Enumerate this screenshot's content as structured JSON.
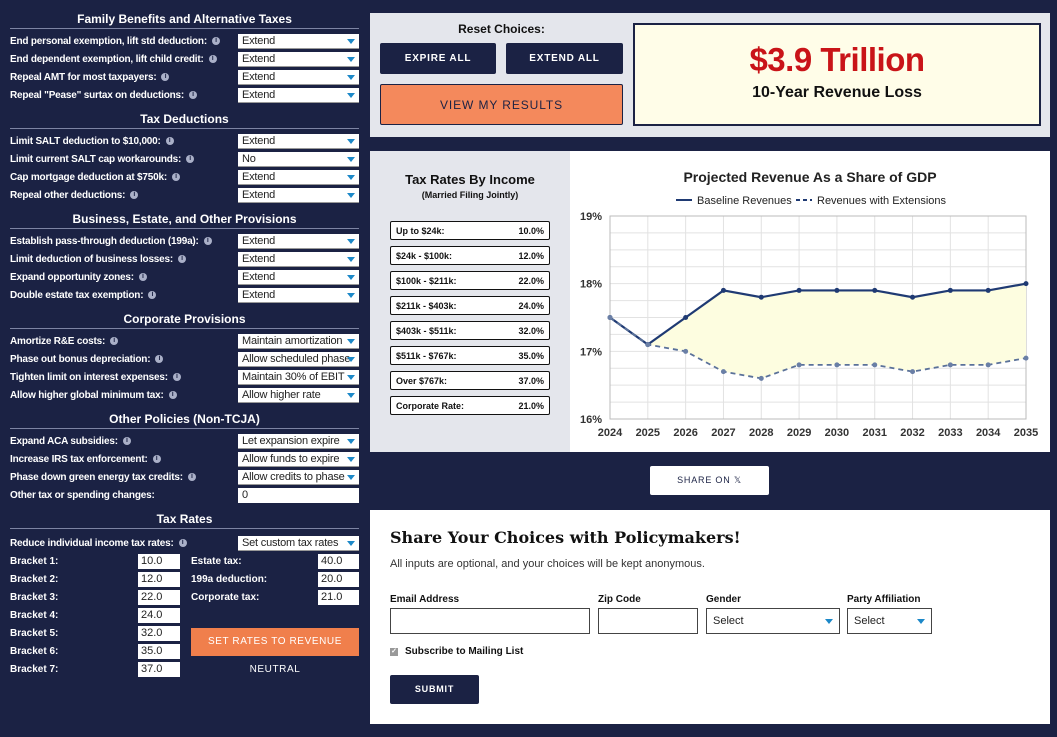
{
  "left": {
    "sections": [
      {
        "title": "Family Benefits and Alternative Taxes",
        "rows": [
          {
            "label": "End personal exemption, lift std deduction:",
            "value": "Extend"
          },
          {
            "label": "End dependent exemption, lift child credit:",
            "value": "Extend"
          },
          {
            "label": "Repeal AMT for most taxpayers:",
            "value": "Extend"
          },
          {
            "label": "Repeal \"Pease\" surtax on deductions:",
            "value": "Extend"
          }
        ]
      },
      {
        "title": "Tax Deductions",
        "rows": [
          {
            "label": "Limit SALT deduction to $10,000:",
            "value": "Extend"
          },
          {
            "label": "Limit current SALT cap workarounds:",
            "value": "No"
          },
          {
            "label": "Cap mortgage deduction at $750k:",
            "value": "Extend"
          },
          {
            "label": "Repeal other deductions:",
            "value": "Extend"
          }
        ]
      },
      {
        "title": "Business, Estate, and Other Provisions",
        "rows": [
          {
            "label": "Establish pass-through deduction (199a):",
            "value": "Extend"
          },
          {
            "label": "Limit deduction of business losses:",
            "value": "Extend"
          },
          {
            "label": "Expand opportunity zones:",
            "value": "Extend"
          },
          {
            "label": "Double estate tax exemption:",
            "value": "Extend"
          }
        ]
      },
      {
        "title": "Corporate Provisions",
        "rows": [
          {
            "label": "Amortize R&E costs:",
            "value": "Maintain amortization"
          },
          {
            "label": "Phase out bonus depreciation:",
            "value": "Allow scheduled phase"
          },
          {
            "label": "Tighten limit on interest expenses:",
            "value": "Maintain 30% of EBIT"
          },
          {
            "label": "Allow higher global minimum tax:",
            "value": "Allow higher rate"
          }
        ]
      },
      {
        "title": "Other Policies (Non-TCJA)",
        "rows": [
          {
            "label": "Expand ACA subsidies:",
            "value": "Let expansion expire"
          },
          {
            "label": "Increase IRS tax enforcement:",
            "value": "Allow funds to expire"
          },
          {
            "label": "Phase down green energy tax credits:",
            "value": "Allow credits to phase"
          },
          {
            "label": "Other tax or spending changes:",
            "value": "0",
            "input": true
          }
        ]
      }
    ],
    "tax_rates": {
      "title": "Tax Rates",
      "reduce_label": "Reduce individual income tax rates:",
      "reduce_value": "Set custom tax rates",
      "brackets": [
        {
          "label": "Bracket 1:",
          "value": "10.0"
        },
        {
          "label": "Bracket 2:",
          "value": "12.0"
        },
        {
          "label": "Bracket 3:",
          "value": "22.0"
        },
        {
          "label": "Bracket 4:",
          "value": "24.0"
        },
        {
          "label": "Bracket 5:",
          "value": "32.0"
        },
        {
          "label": "Bracket 6:",
          "value": "35.0"
        },
        {
          "label": "Bracket 7:",
          "value": "37.0"
        }
      ],
      "others": [
        {
          "label": "Estate tax:",
          "value": "40.0"
        },
        {
          "label": "199a deduction:",
          "value": "20.0"
        },
        {
          "label": "Corporate tax:",
          "value": "21.0"
        }
      ],
      "neutral_button": "SET RATES TO REVENUE NEUTRAL"
    }
  },
  "top": {
    "reset_title": "Reset Choices:",
    "expire_all": "EXPIRE ALL",
    "extend_all": "EXTEND ALL",
    "view_results": "VIEW MY RESULTS",
    "revenue_amount": "$3.9 Trillion",
    "revenue_label": "10-Year Revenue Loss"
  },
  "rates_box": {
    "title": "Tax Rates By Income",
    "subtitle": "(Married Filing Jointly)",
    "rows": [
      {
        "label": "Up to $24k:",
        "value": "10.0%"
      },
      {
        "label": "$24k - $100k:",
        "value": "12.0%"
      },
      {
        "label": "$100k - $211k:",
        "value": "22.0%"
      },
      {
        "label": "$211k - $403k:",
        "value": "24.0%"
      },
      {
        "label": "$403k - $511k:",
        "value": "32.0%"
      },
      {
        "label": "$511k - $767k:",
        "value": "35.0%"
      },
      {
        "label": "Over $767k:",
        "value": "37.0%"
      },
      {
        "label": "Corporate Rate:",
        "value": "21.0%"
      }
    ]
  },
  "chart_data": {
    "type": "line",
    "title": "Projected Revenue As a Share of GDP",
    "x": [
      "2024",
      "2025",
      "2026",
      "2027",
      "2028",
      "2029",
      "2030",
      "2031",
      "2032",
      "2033",
      "2034",
      "2035"
    ],
    "series": [
      {
        "name": "Baseline Revenues",
        "values": [
          17.5,
          17.1,
          17.5,
          17.9,
          17.8,
          17.9,
          17.9,
          17.9,
          17.8,
          17.9,
          17.9,
          18.0
        ]
      },
      {
        "name": "Revenues with Extensions",
        "values": [
          17.5,
          17.1,
          17.0,
          16.7,
          16.6,
          16.8,
          16.8,
          16.8,
          16.7,
          16.8,
          16.8,
          16.9
        ]
      }
    ],
    "ylim": [
      16,
      19
    ],
    "yticks": [
      "16%",
      "17%",
      "18%",
      "19%"
    ],
    "grid": true,
    "legend": "top",
    "colors": {
      "line": "#1f3a73",
      "fill": "#fdfde0"
    }
  },
  "share": {
    "label": "SHARE ON 𝕏"
  },
  "policy": {
    "title": "Share Your Choices with Policymakers!",
    "subtitle": "All inputs are optional, and your choices will be kept anonymous.",
    "email_label": "Email Address",
    "zip_label": "Zip Code",
    "gender_label": "Gender",
    "gender_value": "Select",
    "party_label": "Party Affiliation",
    "party_value": "Select",
    "subscribe_label": "Subscribe to Mailing List",
    "submit_label": "SUBMIT"
  }
}
